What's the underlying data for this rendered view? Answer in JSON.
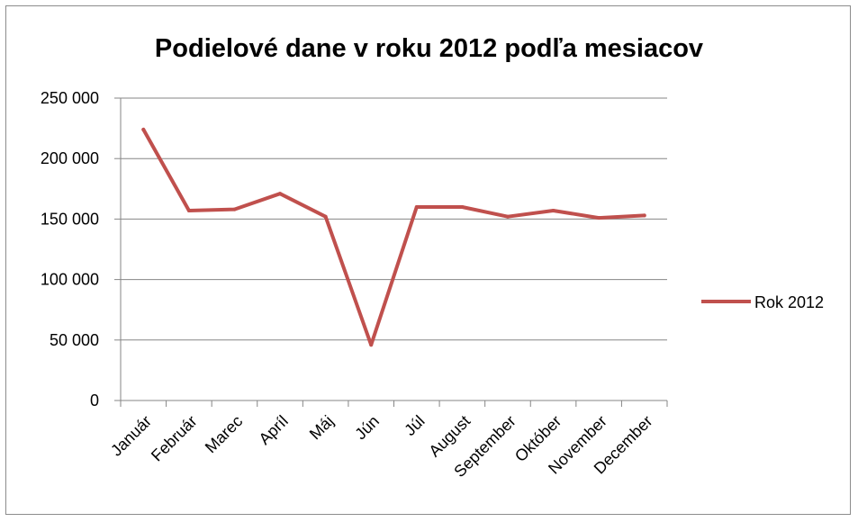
{
  "chart_data": {
    "type": "line",
    "title": "Podielové dane v roku 2012 podľa mesiacov",
    "xlabel": "",
    "ylabel": "",
    "categories": [
      "Január",
      "Február",
      "Marec",
      "Apríl",
      "Máj",
      "Jún",
      "Júl",
      "August",
      "September",
      "Október",
      "November",
      "December"
    ],
    "series": [
      {
        "name": "Rok 2012",
        "values": [
          224000,
          157000,
          158000,
          171000,
          152000,
          46000,
          160000,
          160000,
          152000,
          157000,
          151000,
          153000
        ],
        "color": "#c0504d"
      }
    ],
    "ylim": [
      0,
      250000
    ],
    "yticks": [
      0,
      50000,
      100000,
      150000,
      200000,
      250000
    ],
    "ytick_labels": [
      "0",
      "50 000",
      "100 000",
      "150 000",
      "200 000",
      "250 000"
    ],
    "grid": "horizontal",
    "legend_position": "right"
  }
}
